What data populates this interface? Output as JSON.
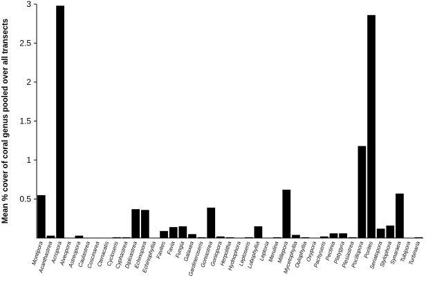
{
  "chart_data": {
    "type": "bar",
    "ylabel": "Mean %  cover of coral genus pooled over all transects",
    "xlabel": "",
    "ylim": [
      0,
      3
    ],
    "yticks": [
      {
        "value": 0.5,
        "label": "0.5"
      },
      {
        "value": 1,
        "label": "1"
      },
      {
        "value": 1.5,
        "label": "1.5"
      },
      {
        "value": 2,
        "label": "2"
      },
      {
        "value": 2.5,
        "label": "2.5"
      },
      {
        "value": 3,
        "label": "3"
      }
    ],
    "grid": false,
    "categories": [
      "Montipora",
      "Acanthastrea",
      "Acropora",
      "Alveopora",
      "Astreopora",
      "Caulastrea",
      "Coscinarea",
      "Ctenacatis",
      "Cycloseris",
      "Cyphastrea",
      "Diploastrea",
      "Echinopora",
      "Echinophyllia",
      "Favites",
      "Favia",
      "Fungia",
      "Galaxea",
      "Gardineroseris",
      "Goniastrea",
      "Goniopora",
      "Herpolitha",
      "Hydnophora",
      "Leptoseris",
      "Lobophyllia",
      "Leptoria",
      "Merulina",
      "Millepora",
      "Mycetophyllia",
      "Oulophyllia",
      "Oxypora",
      "Pachyseris",
      "Pectinia",
      "Platygyra",
      "Plesiastrea",
      "Pocillopora",
      "Porites",
      "Seriatopora",
      "Stylophora",
      "Synaraea",
      "Tubipora",
      "Turbinaria"
    ],
    "values": [
      0.55,
      0.03,
      2.98,
      0.0,
      0.03,
      0.0,
      0.0,
      0.0,
      0.01,
      0.01,
      0.37,
      0.36,
      0.0,
      0.09,
      0.14,
      0.15,
      0.05,
      0.01,
      0.39,
      0.02,
      0.01,
      0.0,
      0.01,
      0.15,
      0.0,
      0.01,
      0.62,
      0.04,
      0.01,
      0.0,
      0.02,
      0.06,
      0.06,
      0.01,
      1.18,
      2.86,
      0.12,
      0.16,
      0.57,
      0.0,
      0.01
    ]
  }
}
